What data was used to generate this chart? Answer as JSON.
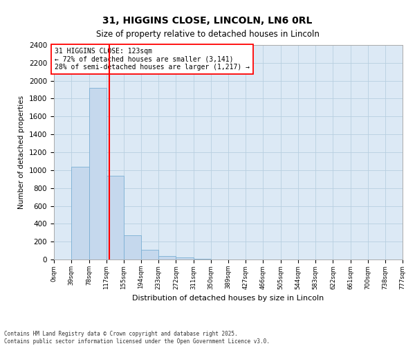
{
  "title": "31, HIGGINS CLOSE, LINCOLN, LN6 0RL",
  "subtitle": "Size of property relative to detached houses in Lincoln",
  "xlabel": "Distribution of detached houses by size in Lincoln",
  "ylabel": "Number of detached properties",
  "bar_color": "#c5d8ed",
  "bar_edge_color": "#7aafd4",
  "grid_color": "#b8cfe0",
  "background_color": "#dce9f5",
  "property_size": 123,
  "annotation_text": "31 HIGGINS CLOSE: 123sqm\n← 72% of detached houses are smaller (3,141)\n28% of semi-detached houses are larger (1,217) →",
  "footnote": "Contains HM Land Registry data © Crown copyright and database right 2025.\nContains public sector information licensed under the Open Government Licence v3.0.",
  "bin_edges": [
    0,
    39,
    78,
    117,
    155,
    194,
    233,
    272,
    311,
    350,
    389,
    427,
    466,
    505,
    544,
    583,
    622,
    661,
    700,
    738,
    777
  ],
  "bin_labels": [
    "0sqm",
    "39sqm",
    "78sqm",
    "117sqm",
    "155sqm",
    "194sqm",
    "233sqm",
    "272sqm",
    "311sqm",
    "350sqm",
    "389sqm",
    "427sqm",
    "466sqm",
    "505sqm",
    "544sqm",
    "583sqm",
    "622sqm",
    "661sqm",
    "700sqm",
    "738sqm",
    "777sqm"
  ],
  "bar_heights": [
    0,
    1040,
    1920,
    940,
    270,
    110,
    38,
    20,
    8,
    0,
    0,
    0,
    0,
    0,
    0,
    0,
    0,
    0,
    0,
    0
  ],
  "ylim": [
    0,
    2400
  ],
  "yticks": [
    0,
    200,
    400,
    600,
    800,
    1000,
    1200,
    1400,
    1600,
    1800,
    2000,
    2200,
    2400
  ]
}
